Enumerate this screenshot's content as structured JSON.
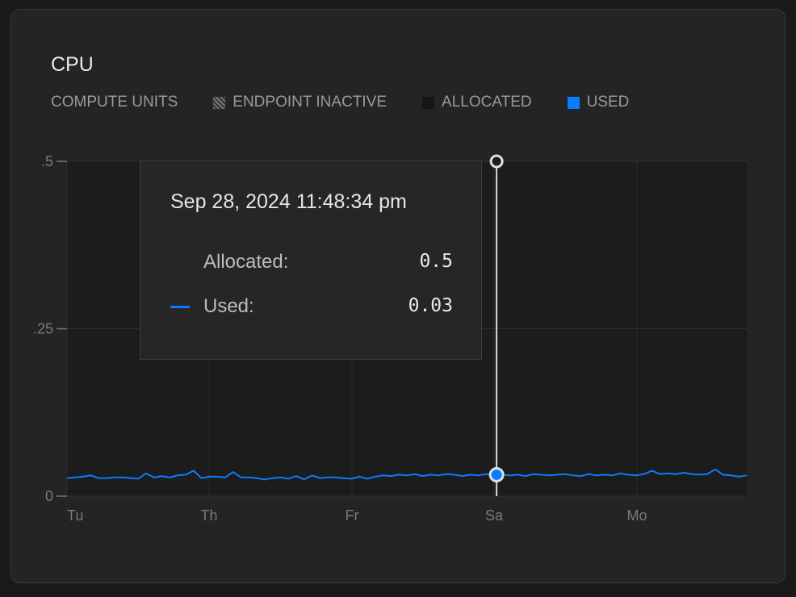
{
  "header": {
    "title": "CPU"
  },
  "legend": {
    "units": "COMPUTE UNITS",
    "items": [
      {
        "label": "ENDPOINT INACTIVE",
        "icon": "hatched-square"
      },
      {
        "label": "ALLOCATED",
        "color": "#161616"
      },
      {
        "label": "USED",
        "color": "#0a7cff"
      }
    ]
  },
  "tooltip": {
    "date": "Sep 28, 2024 11:48:34 pm",
    "allocated_label": "Allocated:",
    "allocated_value": "0.5",
    "used_label": "Used:",
    "used_value": "0.03"
  },
  "chart_data": {
    "type": "line",
    "title": "CPU",
    "ylim": [
      0,
      0.5
    ],
    "yticks": [
      {
        "v": 0.5,
        "label": ".5"
      },
      {
        "v": 0.25,
        "label": ".25"
      },
      {
        "v": 0,
        "label": "0"
      }
    ],
    "xticks": [
      "Tu",
      "Th",
      "Fr",
      "Sa",
      "Mo"
    ],
    "grid": true,
    "legend_position": "top-left",
    "hover_x_fraction": 0.632,
    "series": [
      {
        "name": "Allocated",
        "values_constant": 0.5,
        "color": "#161616"
      },
      {
        "name": "Used",
        "color": "#0a7cff",
        "values": [
          0.027,
          0.028,
          0.029,
          0.031,
          0.027,
          0.027,
          0.028,
          0.028,
          0.027,
          0.026,
          0.034,
          0.028,
          0.03,
          0.028,
          0.031,
          0.032,
          0.038,
          0.027,
          0.029,
          0.029,
          0.028,
          0.036,
          0.028,
          0.028,
          0.027,
          0.025,
          0.027,
          0.028,
          0.026,
          0.03,
          0.025,
          0.031,
          0.027,
          0.028,
          0.028,
          0.027,
          0.026,
          0.029,
          0.026,
          0.029,
          0.031,
          0.03,
          0.032,
          0.031,
          0.033,
          0.03,
          0.032,
          0.031,
          0.033,
          0.032,
          0.03,
          0.032,
          0.031,
          0.033,
          0.032,
          0.032,
          0.031,
          0.032,
          0.03,
          0.033,
          0.032,
          0.031,
          0.032,
          0.033,
          0.031,
          0.03,
          0.033,
          0.031,
          0.032,
          0.031,
          0.034,
          0.032,
          0.031,
          0.033,
          0.038,
          0.033,
          0.034,
          0.033,
          0.035,
          0.033,
          0.032,
          0.033,
          0.04,
          0.032,
          0.031,
          0.029,
          0.031
        ]
      }
    ]
  }
}
